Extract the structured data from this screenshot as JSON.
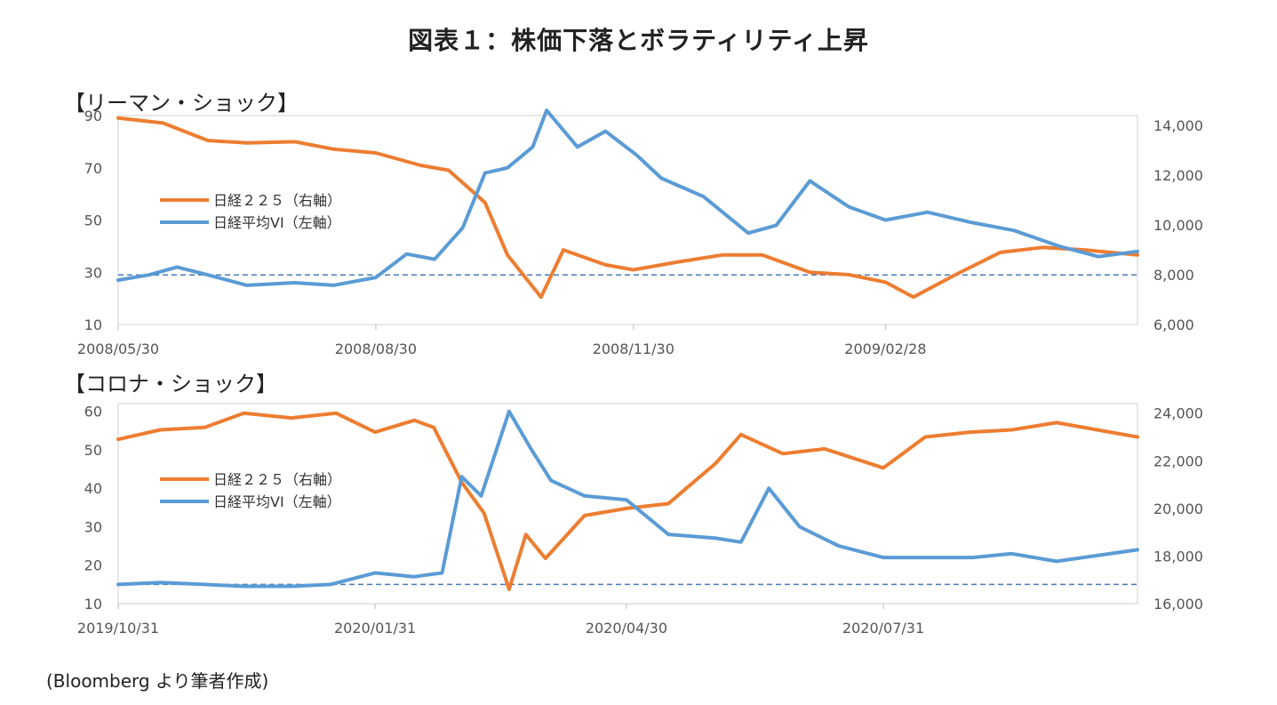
{
  "title": "図表１：株価下落とボラティリティ上昇",
  "source": "(Bloomberg より筆者作成)",
  "chart_data": [
    {
      "section_label": "【リーマン・ショック】",
      "type": "line",
      "x_ticks": [
        "2008/05/30",
        "2008/08/30",
        "2008/11/30",
        "2009/02/28"
      ],
      "x_range": [
        "2008/05/30",
        "2009/05/29"
      ],
      "y_left": {
        "ticks": [
          "10",
          "30",
          "50",
          "70",
          "90"
        ],
        "ylim": [
          10,
          90
        ]
      },
      "y_right": {
        "ticks": [
          "6,000",
          "8,000",
          "10,000",
          "12,000",
          "14,000"
        ],
        "ylim": [
          6000,
          14400
        ]
      },
      "reference_line": {
        "axis": "left",
        "value": 29,
        "style": "dashed"
      },
      "legend": [
        {
          "label": "日経２２５（右軸）",
          "color": "#ED7D31"
        },
        {
          "label": "日経平均VI（左軸）",
          "color": "#5B9BD5"
        }
      ],
      "series": [
        {
          "name": "日経２２５（右軸）",
          "axis": "right",
          "color": "#ED7D31",
          "x": [
            "2008/05/30",
            "2008/06/15",
            "2008/07/01",
            "2008/07/15",
            "2008/08/01",
            "2008/08/15",
            "2008/08/30",
            "2008/09/15",
            "2008/09/25",
            "2008/10/08",
            "2008/10/16",
            "2008/10/28",
            "2008/11/05",
            "2008/11/20",
            "2008/11/30",
            "2008/12/15",
            "2009/01/01",
            "2009/01/15",
            "2009/02/01",
            "2009/02/15",
            "2009/02/28",
            "2009/03/10",
            "2009/03/25",
            "2009/04/10",
            "2009/04/25",
            "2009/05/10",
            "2009/05/29"
          ],
          "y": [
            14300,
            14100,
            13400,
            13300,
            13350,
            13050,
            12900,
            12400,
            12200,
            10900,
            8800,
            7100,
            9000,
            8400,
            8200,
            8500,
            8800,
            8800,
            8100,
            8000,
            7700,
            7100,
            8000,
            8900,
            9100,
            9000,
            8800
          ]
        },
        {
          "name": "日経平均VI（左軸）",
          "axis": "left",
          "color": "#5B9BD5",
          "x": [
            "2008/05/30",
            "2008/06/10",
            "2008/06/20",
            "2008/07/01",
            "2008/07/15",
            "2008/08/01",
            "2008/08/15",
            "2008/08/30",
            "2008/09/10",
            "2008/09/20",
            "2008/09/30",
            "2008/10/08",
            "2008/10/16",
            "2008/10/25",
            "2008/10/30",
            "2008/11/10",
            "2008/11/20",
            "2008/12/01",
            "2008/12/10",
            "2008/12/25",
            "2009/01/10",
            "2009/01/20",
            "2009/02/01",
            "2009/02/15",
            "2009/02/28",
            "2009/03/15",
            "2009/03/31",
            "2009/04/15",
            "2009/05/01",
            "2009/05/15",
            "2009/05/29"
          ],
          "y": [
            27,
            29,
            32,
            29,
            25,
            26,
            25,
            28,
            37,
            35,
            47,
            68,
            70,
            78,
            92,
            78,
            84,
            75,
            66,
            59,
            45,
            48,
            65,
            55,
            50,
            53,
            49,
            46,
            40,
            36,
            38
          ]
        }
      ]
    },
    {
      "section_label": "【コロナ・ショック】",
      "type": "line",
      "x_ticks": [
        "2019/10/31",
        "2020/01/31",
        "2020/04/30",
        "2020/07/31"
      ],
      "x_range": [
        "2019/10/31",
        "2020/10/30"
      ],
      "y_left": {
        "ticks": [
          "10",
          "20",
          "30",
          "40",
          "50",
          "60"
        ],
        "ylim": [
          10,
          62
        ]
      },
      "y_right": {
        "ticks": [
          "16,000",
          "18,000",
          "20,000",
          "22,000",
          "24,000"
        ],
        "ylim": [
          16000,
          24400
        ]
      },
      "reference_line": {
        "axis": "left",
        "value": 15,
        "style": "dashed"
      },
      "legend": [
        {
          "label": "日経２２５（右軸）",
          "color": "#ED7D31"
        },
        {
          "label": "日経平均VI（左軸）",
          "color": "#5B9BD5"
        }
      ],
      "series": [
        {
          "name": "日経２２５（右軸）",
          "axis": "right",
          "color": "#ED7D31",
          "x": [
            "2019/10/31",
            "2019/11/15",
            "2019/12/01",
            "2019/12/15",
            "2020/01/01",
            "2020/01/17",
            "2020/01/31",
            "2020/02/14",
            "2020/02/21",
            "2020/03/02",
            "2020/03/10",
            "2020/03/19",
            "2020/03/25",
            "2020/04/01",
            "2020/04/15",
            "2020/04/30",
            "2020/05/15",
            "2020/06/01",
            "2020/06/10",
            "2020/06/25",
            "2020/07/10",
            "2020/07/31",
            "2020/08/15",
            "2020/08/31",
            "2020/09/15",
            "2020/10/01",
            "2020/10/30"
          ],
          "y": [
            22900,
            23300,
            23400,
            24000,
            23800,
            24000,
            23200,
            23700,
            23400,
            21100,
            19800,
            16600,
            18900,
            17900,
            19700,
            20000,
            20200,
            21900,
            23100,
            22300,
            22500,
            21700,
            23000,
            23200,
            23300,
            23600,
            23000
          ]
        },
        {
          "name": "日経平均VI（左軸）",
          "axis": "left",
          "color": "#5B9BD5",
          "x": [
            "2019/10/31",
            "2019/11/15",
            "2019/12/01",
            "2019/12/15",
            "2020/01/01",
            "2020/01/15",
            "2020/01/31",
            "2020/02/14",
            "2020/02/24",
            "2020/03/02",
            "2020/03/09",
            "2020/03/19",
            "2020/03/27",
            "2020/04/03",
            "2020/04/15",
            "2020/04/30",
            "2020/05/15",
            "2020/06/01",
            "2020/06/10",
            "2020/06/20",
            "2020/07/01",
            "2020/07/15",
            "2020/07/31",
            "2020/08/15",
            "2020/09/01",
            "2020/09/15",
            "2020/10/01",
            "2020/10/30"
          ],
          "y": [
            15,
            15.5,
            15,
            14.5,
            14.5,
            15,
            18,
            17,
            18,
            43,
            38,
            60,
            50,
            42,
            38,
            37,
            28,
            27,
            26,
            40,
            30,
            25,
            22,
            22,
            22,
            23,
            21,
            24
          ]
        }
      ]
    }
  ]
}
